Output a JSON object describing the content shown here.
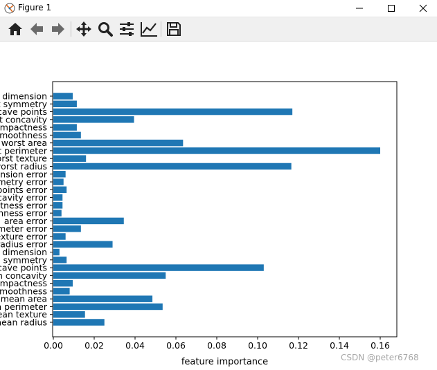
{
  "window": {
    "title": "Figure 1",
    "controls": [
      "minimize",
      "maximize",
      "close"
    ]
  },
  "toolbar": {
    "buttons": [
      {
        "name": "home",
        "icon": "home-icon"
      },
      {
        "name": "back",
        "icon": "arrow-left-icon"
      },
      {
        "name": "forward",
        "icon": "arrow-right-icon"
      },
      {
        "name": "pan",
        "icon": "move-icon"
      },
      {
        "name": "zoom",
        "icon": "magnifier-icon"
      },
      {
        "name": "configure-subplots",
        "icon": "sliders-icon"
      },
      {
        "name": "edit-axis",
        "icon": "line-chart-icon"
      },
      {
        "name": "save",
        "icon": "floppy-disk-icon"
      }
    ]
  },
  "watermark": "CSDN @peter6768",
  "chart_data": {
    "type": "bar",
    "orientation": "horizontal",
    "bar_color": "#1f77b4",
    "categories": [
      "mean radius",
      "mean texture",
      "mean perimeter",
      "mean area",
      "mean smoothness",
      "mean compactness",
      "mean concavity",
      "mean concave points",
      "mean symmetry",
      "mean fractal dimension",
      "radius error",
      "texture error",
      "perimeter error",
      "area error",
      "smoothness error",
      "compactness error",
      "concavity error",
      "concave points error",
      "symmetry error",
      "fractal dimension error",
      "worst radius",
      "worst texture",
      "worst perimeter",
      "worst area",
      "worst smoothness",
      "worst compactness",
      "worst concavity",
      "worst concave points",
      "worst symmetry",
      "worst fractal dimension"
    ],
    "values": [
      0.025,
      0.0155,
      0.0535,
      0.0485,
      0.008,
      0.0095,
      0.055,
      0.103,
      0.0065,
      0.003,
      0.029,
      0.006,
      0.0135,
      0.0345,
      0.004,
      0.0045,
      0.0045,
      0.0065,
      0.005,
      0.006,
      0.1165,
      0.016,
      0.16,
      0.0635,
      0.0135,
      0.0115,
      0.0395,
      0.117,
      0.0115,
      0.0095
    ],
    "xlabel": "feature importance",
    "ylabel": "",
    "xlim": [
      0,
      0.168
    ],
    "xticks": [
      "0.00",
      "0.02",
      "0.04",
      "0.06",
      "0.08",
      "0.10",
      "0.12",
      "0.14",
      "0.16"
    ],
    "grid": false,
    "legend": "none"
  }
}
